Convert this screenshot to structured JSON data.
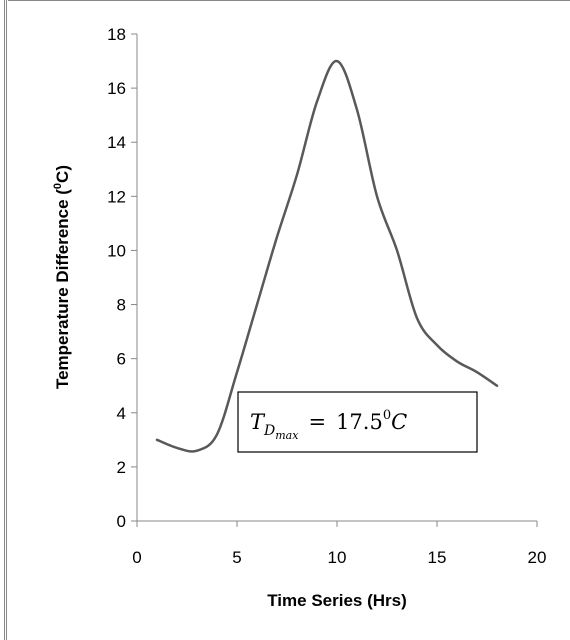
{
  "chart_data": {
    "type": "line",
    "xlabel": "Time Series (Hrs)",
    "ylabel_main": "Temperature Difference (",
    "ylabel_sup": "0",
    "ylabel_tail": "C)",
    "xlim": [
      0,
      20
    ],
    "ylim": [
      0,
      18
    ],
    "x_ticks": [
      "0",
      "5",
      "10",
      "15",
      "20"
    ],
    "y_ticks": [
      "0",
      "2",
      "4",
      "6",
      "8",
      "10",
      "12",
      "14",
      "16",
      "18"
    ],
    "grid": false,
    "series": [
      {
        "color": "#595959",
        "x": [
          1,
          2,
          3,
          4,
          5,
          6,
          7,
          8,
          9,
          10,
          11,
          12,
          13,
          14,
          15,
          16,
          17,
          18
        ],
        "y": [
          3.0,
          2.7,
          2.6,
          3.2,
          5.5,
          8.0,
          10.5,
          12.8,
          15.5,
          17.0,
          15.2,
          12.0,
          10.0,
          7.5,
          6.5,
          5.9,
          5.5,
          5.0
        ]
      }
    ],
    "annotation": {
      "T": "T",
      "sub_D": "D",
      "sub_max": "max",
      "equals": "=",
      "value": "17.5",
      "sup": "0",
      "unit": "C"
    }
  }
}
